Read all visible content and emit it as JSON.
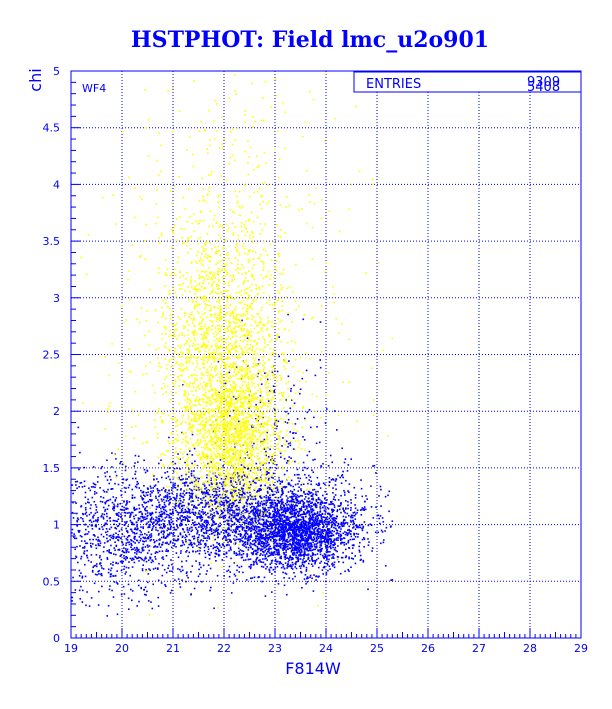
{
  "chart_data": {
    "type": "scatter",
    "title": "HSTPHOT: Field lmc_u2o901",
    "xlabel": "F814W",
    "ylabel": "chi",
    "xlim": [
      19,
      29
    ],
    "ylim": [
      0,
      5
    ],
    "xticks": [
      "19",
      "20",
      "21",
      "22",
      "23",
      "24",
      "25",
      "26",
      "27",
      "28",
      "29"
    ],
    "yticks": [
      "0",
      "0.5",
      "1",
      "1.5",
      "2",
      "2.5",
      "3",
      "3.5",
      "4",
      "4.5",
      "5"
    ],
    "grid": true,
    "annotation": "WF4",
    "stats_box": {
      "label": "ENTRIES",
      "values": [
        "9309",
        "5408"
      ]
    },
    "series": [
      {
        "color": "#0000ff",
        "marker": "dot",
        "clusters": [
          {
            "cx": 22.0,
            "cy": 1.08,
            "sx": 1.45,
            "sy": 0.22,
            "n": 2600
          },
          {
            "cx": 23.4,
            "cy": 0.92,
            "sx": 0.55,
            "sy": 0.16,
            "n": 1800
          },
          {
            "cx": 20.0,
            "cy": 0.85,
            "sx": 0.75,
            "sy": 0.28,
            "n": 600
          },
          {
            "cx": 23.0,
            "cy": 1.7,
            "sx": 0.6,
            "sy": 0.45,
            "n": 250
          }
        ]
      },
      {
        "color": "#ffff00",
        "marker": "dot",
        "clusters": [
          {
            "cx": 22.15,
            "cy": 1.75,
            "sx": 0.5,
            "sy": 0.32,
            "n": 1500
          },
          {
            "cx": 21.9,
            "cy": 2.5,
            "sx": 0.6,
            "sy": 0.55,
            "n": 1500
          },
          {
            "cx": 22.2,
            "cy": 3.3,
            "sx": 0.75,
            "sy": 0.8,
            "n": 450
          },
          {
            "cx": 22.0,
            "cy": 2.6,
            "sx": 1.7,
            "sy": 1.1,
            "n": 250
          }
        ]
      }
    ]
  }
}
